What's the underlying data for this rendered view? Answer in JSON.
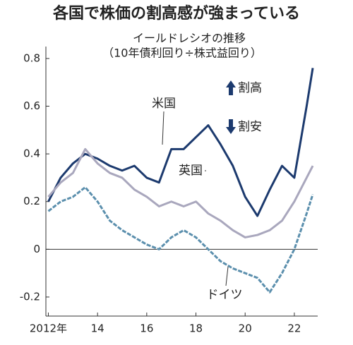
{
  "chart_data": {
    "type": "line",
    "title": "各国で株価の割高感が強まっている",
    "subtitle": "イールドレシオの推移",
    "subtitle_note": "（10年債利回り÷株式益回り）",
    "annotations": [
      "割高",
      "割安"
    ],
    "x": [
      2012,
      2012.5,
      2013,
      2013.5,
      2014,
      2014.5,
      2015,
      2015.5,
      2016,
      2016.5,
      2017,
      2017.5,
      2018,
      2018.5,
      2019,
      2019.5,
      2020,
      2020.5,
      2021,
      2021.5,
      2022,
      2022.5,
      2022.75
    ],
    "series": [
      {
        "name": "米国",
        "color": "#1c3a6e",
        "values": [
          0.2,
          0.3,
          0.36,
          0.4,
          0.38,
          0.35,
          0.33,
          0.35,
          0.3,
          0.28,
          0.42,
          0.42,
          0.47,
          0.52,
          0.44,
          0.35,
          0.22,
          0.14,
          0.25,
          0.35,
          0.3,
          0.6,
          0.76
        ]
      },
      {
        "name": "英国",
        "color": "#a9a7bd",
        "values": [
          0.22,
          0.28,
          0.32,
          0.42,
          0.36,
          0.32,
          0.3,
          0.25,
          0.22,
          0.18,
          0.2,
          0.18,
          0.2,
          0.15,
          0.12,
          0.08,
          0.05,
          0.06,
          0.08,
          0.12,
          0.2,
          0.3,
          0.35
        ]
      },
      {
        "name": "ドイツ",
        "color": "#5b8fad",
        "dashed": true,
        "values": [
          0.16,
          0.2,
          0.22,
          0.26,
          0.2,
          0.12,
          0.08,
          0.05,
          0.02,
          0,
          0.05,
          0.08,
          0.05,
          0,
          -0.05,
          -0.08,
          -0.1,
          -0.12,
          -0.18,
          -0.1,
          0,
          0.15,
          0.23
        ]
      }
    ],
    "xlim": [
      2011.9,
      2022.95
    ],
    "xticks": [
      {
        "value": 2012,
        "label": "2012年"
      },
      {
        "value": 2014,
        "label": "14"
      },
      {
        "value": 2016,
        "label": "16"
      },
      {
        "value": 2018,
        "label": "18"
      },
      {
        "value": 2020,
        "label": "20"
      },
      {
        "value": 2022,
        "label": "22"
      }
    ],
    "ylim": [
      -0.28,
      0.85
    ],
    "yticks": [
      -0.2,
      0,
      0.2,
      0.4,
      0.6,
      0.8
    ]
  }
}
